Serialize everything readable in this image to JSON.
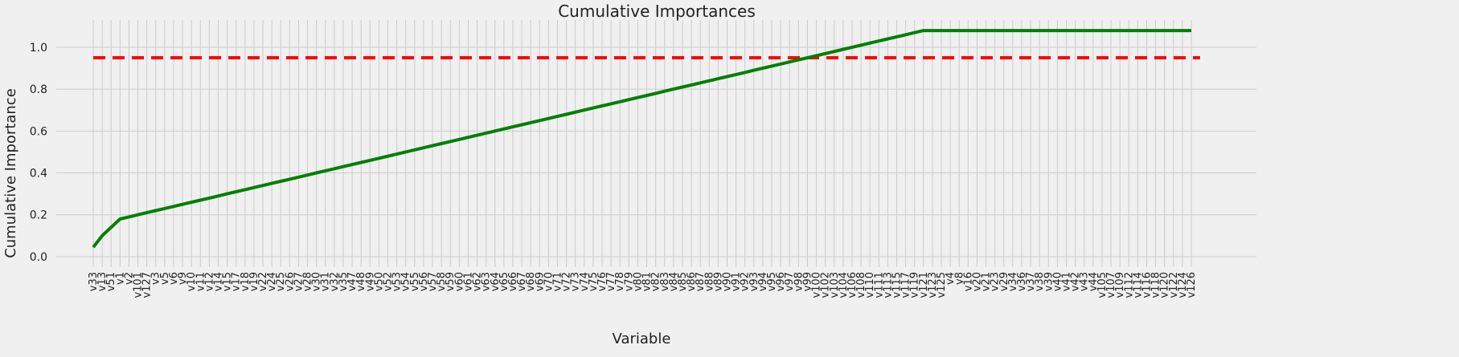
{
  "chart_data": {
    "type": "line",
    "title": "Cumulative Importances",
    "xlabel": "Variable",
    "ylabel": "Cumulative Importance",
    "ylim": [
      -0.05,
      1.13
    ],
    "yticks": [
      0.0,
      0.2,
      0.4,
      0.6,
      0.8,
      1.0
    ],
    "ytick_labels": [
      "0.0",
      "0.2",
      "0.4",
      "0.6",
      "0.8",
      "1.0"
    ],
    "grid": true,
    "categories": [
      "v33",
      "v13",
      "v51",
      "v1",
      "v2",
      "v101",
      "v127",
      "v3",
      "v5",
      "v6",
      "v9",
      "v10",
      "v11",
      "v12",
      "v14",
      "v15",
      "v17",
      "v18",
      "v19",
      "v22",
      "v24",
      "v25",
      "v26",
      "v27",
      "v28",
      "v30",
      "v31",
      "v32",
      "v35",
      "v47",
      "v48",
      "v49",
      "v50",
      "v52",
      "v53",
      "v54",
      "v55",
      "v56",
      "v57",
      "v58",
      "v59",
      "v60",
      "v61",
      "v62",
      "v63",
      "v64",
      "v65",
      "v66",
      "v67",
      "v68",
      "v69",
      "v70",
      "v71",
      "v72",
      "v73",
      "v74",
      "v75",
      "v76",
      "v77",
      "v78",
      "v79",
      "v80",
      "v81",
      "v82",
      "v83",
      "v84",
      "v85",
      "v86",
      "v87",
      "v88",
      "v89",
      "v90",
      "v91",
      "v92",
      "v93",
      "v94",
      "v95",
      "v96",
      "v97",
      "v98",
      "v99",
      "v100",
      "v102",
      "v103",
      "v104",
      "v106",
      "v108",
      "v110",
      "v111",
      "v113",
      "v115",
      "v117",
      "v119",
      "v121",
      "v123",
      "v125",
      "v4",
      "v8",
      "v16",
      "v20",
      "v21",
      "v23",
      "v29",
      "v34",
      "v36",
      "v37",
      "v38",
      "v39",
      "v40",
      "v41",
      "v42",
      "v43",
      "v44",
      "v105",
      "v107",
      "v109",
      "v112",
      "v114",
      "v116",
      "v118",
      "v120",
      "v122",
      "v124",
      "v126"
    ],
    "series": [
      {
        "color": "#008000",
        "style": "solid",
        "start_value": 0.045,
        "knee_values": [
          0.1,
          0.14,
          0.18
        ],
        "slope": 0.01,
        "end_value": 1.08
      }
    ],
    "threshold": {
      "value": 0.95,
      "color": "#ff0000",
      "style": "dashed"
    }
  }
}
